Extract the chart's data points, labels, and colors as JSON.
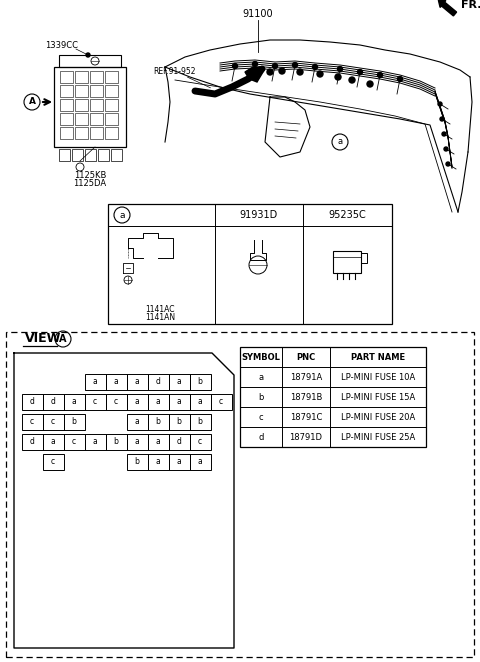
{
  "bg_color": "#ffffff",
  "label_91100": "91100",
  "label_1339CC": "1339CC",
  "label_ref": "REF.91-952",
  "label_1125KB": "1125KB",
  "label_1125DA": "1125DA",
  "label_fr": "FR.",
  "label_91931D": "91931D",
  "label_95235C": "95235C",
  "label_1141AC": "1141AC",
  "label_1141AN": "1141AN",
  "view_title": "VIEW",
  "table_headers": [
    "SYMBOL",
    "PNC",
    "PART NAME"
  ],
  "table_rows": [
    [
      "a",
      "18791A",
      "LP-MINI FUSE 10A"
    ],
    [
      "b",
      "18791B",
      "LP-MINI FUSE 15A"
    ],
    [
      "c",
      "18791C",
      "LP-MINI FUSE 20A"
    ],
    [
      "d",
      "18791D",
      "LP-MINI FUSE 25A"
    ]
  ],
  "fuse_rows": [
    [
      [
        "a",
        3
      ],
      [
        "a",
        4
      ],
      [
        "a",
        5
      ],
      [
        "d",
        6
      ],
      [
        "a",
        7
      ],
      [
        "b",
        8
      ]
    ],
    [
      [
        "d",
        0
      ],
      [
        "d",
        1
      ],
      [
        "a",
        2
      ],
      [
        "c",
        3
      ],
      [
        "c",
        4
      ],
      [
        "a",
        5
      ],
      [
        "a",
        6
      ],
      [
        "a",
        7
      ],
      [
        "a",
        8
      ],
      [
        "c",
        9
      ]
    ],
    [
      [
        "c",
        0
      ],
      [
        "c",
        1
      ],
      [
        "b",
        2
      ],
      [
        "a",
        5
      ],
      [
        "b",
        6
      ],
      [
        "b",
        7
      ],
      [
        "b",
        8
      ]
    ],
    [
      [
        "d",
        0
      ],
      [
        "a",
        1
      ],
      [
        "c",
        2
      ],
      [
        "a",
        3
      ],
      [
        "b",
        4
      ],
      [
        "a",
        5
      ],
      [
        "a",
        6
      ],
      [
        "d",
        7
      ],
      [
        "c",
        8
      ]
    ],
    [
      [
        "c",
        1
      ],
      [
        "b",
        5
      ],
      [
        "a",
        6
      ],
      [
        "a",
        7
      ],
      [
        "a",
        8
      ]
    ]
  ]
}
